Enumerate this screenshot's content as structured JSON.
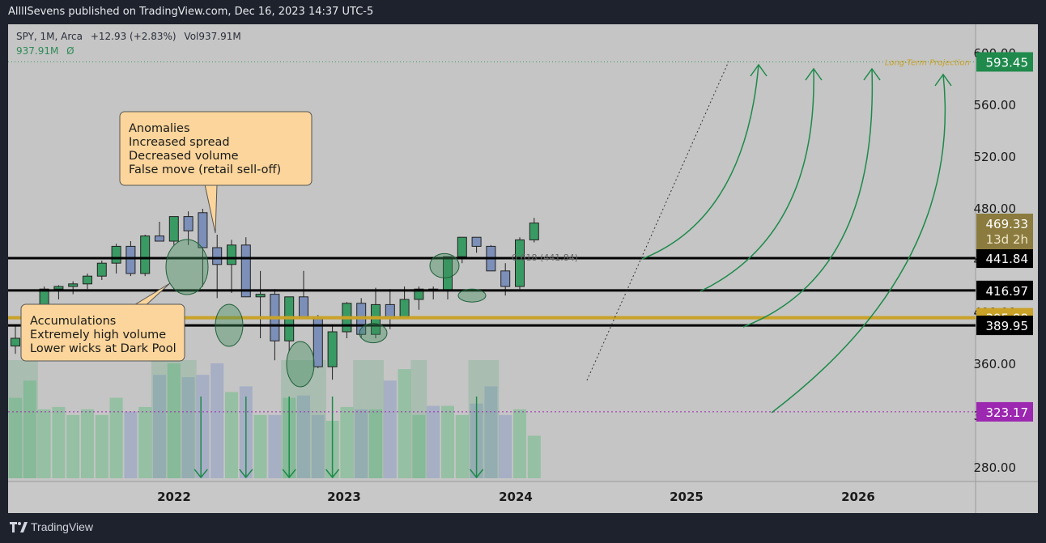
{
  "header": {
    "publisher_text": "AllllSevens published on TradingView.com, Dec 16, 2023 14:37 UTC-5"
  },
  "legend": {
    "symbol": "SPY, 1M, Arca",
    "change": "+12.93 (+2.83%)",
    "volume": "Vol937.91M",
    "volume_value": "937.91M",
    "volume_extra": "Ø"
  },
  "footer": {
    "brand": "TradingView"
  },
  "colors": {
    "up": "#3a9a63",
    "down": "#7b8fb8",
    "background": "#c5c5c5",
    "accent_gold": "#c9a227",
    "purple": "#9c27b0",
    "arrow": "#1d8a4a",
    "annotation_fill": "#fbd59b",
    "price_tag_green": "#1f8a4c"
  },
  "annotations": {
    "anomalies": [
      "Anomalies",
      "Increased spread",
      "Decreased volume",
      "False move (retail sell-off)"
    ],
    "accumulations": [
      "Accumulations",
      "Extremely high volume",
      "Lower wicks at Dark Pool"
    ],
    "projection_label": "Long-Term Projection",
    "fib_label": "0.618 (441.84)"
  },
  "chart_data": {
    "type": "candlestick",
    "symbol": "SPY",
    "interval": "1M",
    "x_ticks": [
      "2022",
      "2023",
      "2024",
      "2025",
      "2026"
    ],
    "y_ticks": [
      "600.00",
      "560.00",
      "520.00",
      "480.00",
      "440.00",
      "400.00",
      "360.00",
      "320.00",
      "280.00"
    ],
    "ylim": [
      265,
      610
    ],
    "candles": [
      {
        "o": 374,
        "h": 390,
        "l": 368,
        "c": 380
      },
      {
        "o": 380,
        "h": 397,
        "l": 375,
        "c": 392
      },
      {
        "o": 392,
        "h": 420,
        "l": 388,
        "c": 418
      },
      {
        "o": 418,
        "h": 421,
        "l": 410,
        "c": 420
      },
      {
        "o": 420,
        "h": 424,
        "l": 414,
        "c": 422
      },
      {
        "o": 422,
        "h": 430,
        "l": 418,
        "c": 428
      },
      {
        "o": 428,
        "h": 440,
        "l": 425,
        "c": 438
      },
      {
        "o": 438,
        "h": 453,
        "l": 430,
        "c": 451
      },
      {
        "o": 451,
        "h": 455,
        "l": 428,
        "c": 430
      },
      {
        "o": 430,
        "h": 460,
        "l": 428,
        "c": 459
      },
      {
        "o": 459,
        "h": 470,
        "l": 455,
        "c": 455
      },
      {
        "o": 455,
        "h": 473,
        "l": 452,
        "c": 474
      },
      {
        "o": 474,
        "h": 478,
        "l": 452,
        "c": 463
      },
      {
        "o": 477,
        "h": 480,
        "l": 420,
        "c": 450
      },
      {
        "o": 450,
        "h": 460,
        "l": 411,
        "c": 437
      },
      {
        "o": 437,
        "h": 456,
        "l": 415,
        "c": 452
      },
      {
        "o": 452,
        "h": 458,
        "l": 412,
        "c": 412
      },
      {
        "o": 412,
        "h": 432,
        "l": 380,
        "c": 414
      },
      {
        "o": 414,
        "h": 418,
        "l": 363,
        "c": 378
      },
      {
        "o": 378,
        "h": 411,
        "l": 370,
        "c": 412
      },
      {
        "o": 412,
        "h": 432,
        "l": 395,
        "c": 395
      },
      {
        "o": 395,
        "h": 398,
        "l": 357,
        "c": 358
      },
      {
        "o": 358,
        "h": 390,
        "l": 348,
        "c": 385
      },
      {
        "o": 385,
        "h": 408,
        "l": 380,
        "c": 407
      },
      {
        "o": 407,
        "h": 411,
        "l": 380,
        "c": 383
      },
      {
        "o": 383,
        "h": 419,
        "l": 380,
        "c": 406
      },
      {
        "o": 406,
        "h": 418,
        "l": 387,
        "c": 396
      },
      {
        "o": 396,
        "h": 420,
        "l": 395,
        "c": 410
      },
      {
        "o": 410,
        "h": 420,
        "l": 402,
        "c": 418
      },
      {
        "o": 418,
        "h": 420,
        "l": 410,
        "c": 417
      },
      {
        "o": 417,
        "h": 443,
        "l": 410,
        "c": 443
      },
      {
        "o": 443,
        "h": 458,
        "l": 438,
        "c": 458
      },
      {
        "o": 458,
        "h": 458,
        "l": 446,
        "c": 451
      },
      {
        "o": 451,
        "h": 452,
        "l": 432,
        "c": 432
      },
      {
        "o": 432,
        "h": 438,
        "l": 413,
        "c": 420
      },
      {
        "o": 420,
        "h": 458,
        "l": 418,
        "c": 456
      },
      {
        "o": 456,
        "h": 473,
        "l": 454,
        "c": 469
      }
    ],
    "volumes": [
      0.7,
      0.85,
      0.6,
      0.62,
      0.55,
      0.6,
      0.55,
      0.7,
      0.58,
      0.62,
      0.9,
      1.0,
      0.88,
      0.9,
      1.0,
      0.75,
      0.8,
      0.55,
      0.55,
      0.7,
      0.72,
      0.55,
      0.5,
      0.62,
      0.6,
      0.6,
      0.85,
      0.95,
      0.55,
      0.63,
      0.63,
      0.55,
      0.65,
      0.8,
      0.55,
      0.6,
      0.37
    ],
    "levels": [
      {
        "value": 441.84,
        "label": "441.84",
        "color": "#000000"
      },
      {
        "value": 416.97,
        "label": "416.97",
        "color": "#000000"
      },
      {
        "value": 395.88,
        "label": "395.88",
        "color": "#c9a227"
      },
      {
        "value": 389.95,
        "label": "389.95",
        "color": "#000000"
      },
      {
        "value": 323.17,
        "label": "323.17",
        "color": "#9c27b0"
      },
      {
        "value": 593.45,
        "label": "593.45",
        "color": "#1f8a4c"
      }
    ],
    "current_price": {
      "value": "469.33",
      "countdown": "13d 2h"
    }
  }
}
